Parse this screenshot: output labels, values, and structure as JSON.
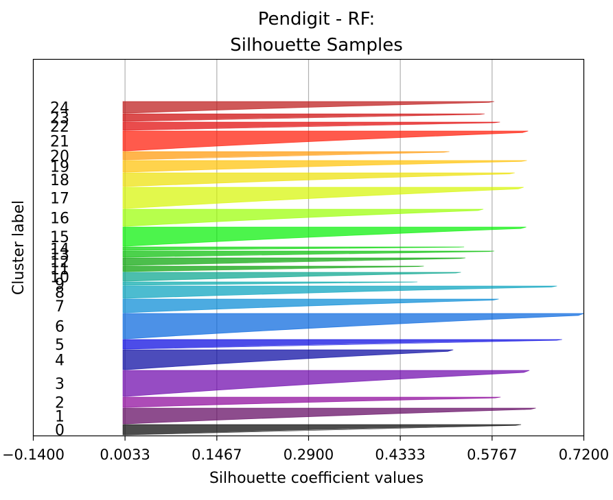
{
  "chart_data": {
    "type": "silhouette",
    "title": "Pendigit - RF:\nSilhouette Samples",
    "title_lines": [
      "Pendigit - RF:",
      "Silhouette Samples"
    ],
    "xlabel": "Silhouette coefficient values",
    "ylabel": "Cluster label",
    "xlim": [
      -0.14,
      0.72
    ],
    "xticks": [
      -0.14,
      0.0033,
      0.1467,
      0.29,
      0.4333,
      0.5767,
      0.72
    ],
    "xtick_labels": [
      "−0.1400",
      "0.0033",
      "0.1467",
      "0.2900",
      "0.4333",
      "0.5767",
      "0.7200"
    ],
    "grid": "vertical",
    "fill_alpha": 0.7,
    "clusters": [
      {
        "label": "0",
        "color": "#000000",
        "max": 0.622,
        "thickness": 16
      },
      {
        "label": "1",
        "color": "#5c005c",
        "max": 0.645,
        "thickness": 24
      },
      {
        "label": "2",
        "color": "#8a0099",
        "max": 0.59,
        "thickness": 16
      },
      {
        "label": "3",
        "color": "#6a00aa",
        "max": 0.635,
        "thickness": 39
      },
      {
        "label": "4",
        "color": "#00009e",
        "max": 0.516,
        "thickness": 30
      },
      {
        "label": "5",
        "color": "#0000e0",
        "max": 0.686,
        "thickness": 15
      },
      {
        "label": "6",
        "color": "#0062dd",
        "max": 0.72,
        "thickness": 38
      },
      {
        "label": "7",
        "color": "#0088d4",
        "max": 0.587,
        "thickness": 21
      },
      {
        "label": "8",
        "color": "#009fbc",
        "max": 0.678,
        "thickness": 19
      },
      {
        "label": "9",
        "color": "#00a6aa",
        "max": 0.46,
        "thickness": 6
      },
      {
        "label": "10",
        "color": "#00a28a",
        "max": 0.528,
        "thickness": 14
      },
      {
        "label": "11",
        "color": "#009e00",
        "max": 0.47,
        "thickness": 9
      },
      {
        "label": "12",
        "color": "#00a200",
        "max": 0.535,
        "thickness": 12
      },
      {
        "label": "13",
        "color": "#00bd00",
        "max": 0.58,
        "thickness": 10
      },
      {
        "label": "14",
        "color": "#00d400",
        "max": 0.533,
        "thickness": 6
      },
      {
        "label": "15",
        "color": "#00f000",
        "max": 0.63,
        "thickness": 29
      },
      {
        "label": "16",
        "color": "#98ff00",
        "max": 0.563,
        "thickness": 26
      },
      {
        "label": "17",
        "color": "#d6f500",
        "max": 0.626,
        "thickness": 32
      },
      {
        "label": "18",
        "color": "#ede000",
        "max": 0.612,
        "thickness": 21
      },
      {
        "label": "19",
        "color": "#ffc000",
        "max": 0.631,
        "thickness": 18
      },
      {
        "label": "20",
        "color": "#ff9600",
        "max": 0.51,
        "thickness": 13
      },
      {
        "label": "21",
        "color": "#ff1400",
        "max": 0.633,
        "thickness": 30
      },
      {
        "label": "22",
        "color": "#e00000",
        "max": 0.589,
        "thickness": 13
      },
      {
        "label": "23",
        "color": "#cc0000",
        "max": 0.565,
        "thickness": 12
      },
      {
        "label": "24",
        "color": "#bb1111",
        "max": 0.58,
        "thickness": 18
      }
    ]
  }
}
